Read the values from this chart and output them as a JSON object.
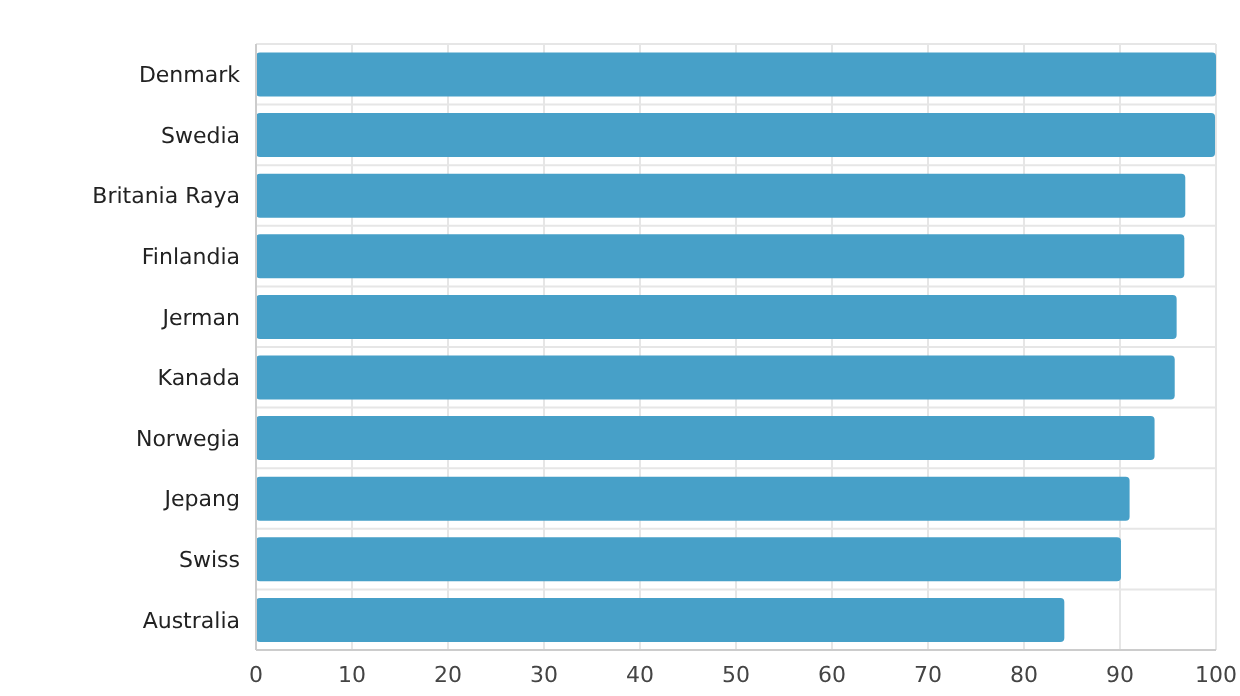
{
  "chart_data": {
    "type": "bar",
    "orientation": "horizontal",
    "categories": [
      "Denmark",
      "Swedia",
      "Britania Raya",
      "Finlandia",
      "Jerman",
      "Kanada",
      "Norwegia",
      "Jepang",
      "Swiss",
      "Australia"
    ],
    "values": [
      100,
      99.9,
      96.8,
      96.7,
      95.9,
      95.7,
      93.6,
      91.0,
      90.1,
      84.2
    ],
    "color": "#47a0c8",
    "xlim": [
      0,
      100
    ],
    "xticks": [
      0,
      10,
      20,
      30,
      40,
      50,
      60,
      70,
      80,
      90,
      100
    ],
    "grid": true
  }
}
